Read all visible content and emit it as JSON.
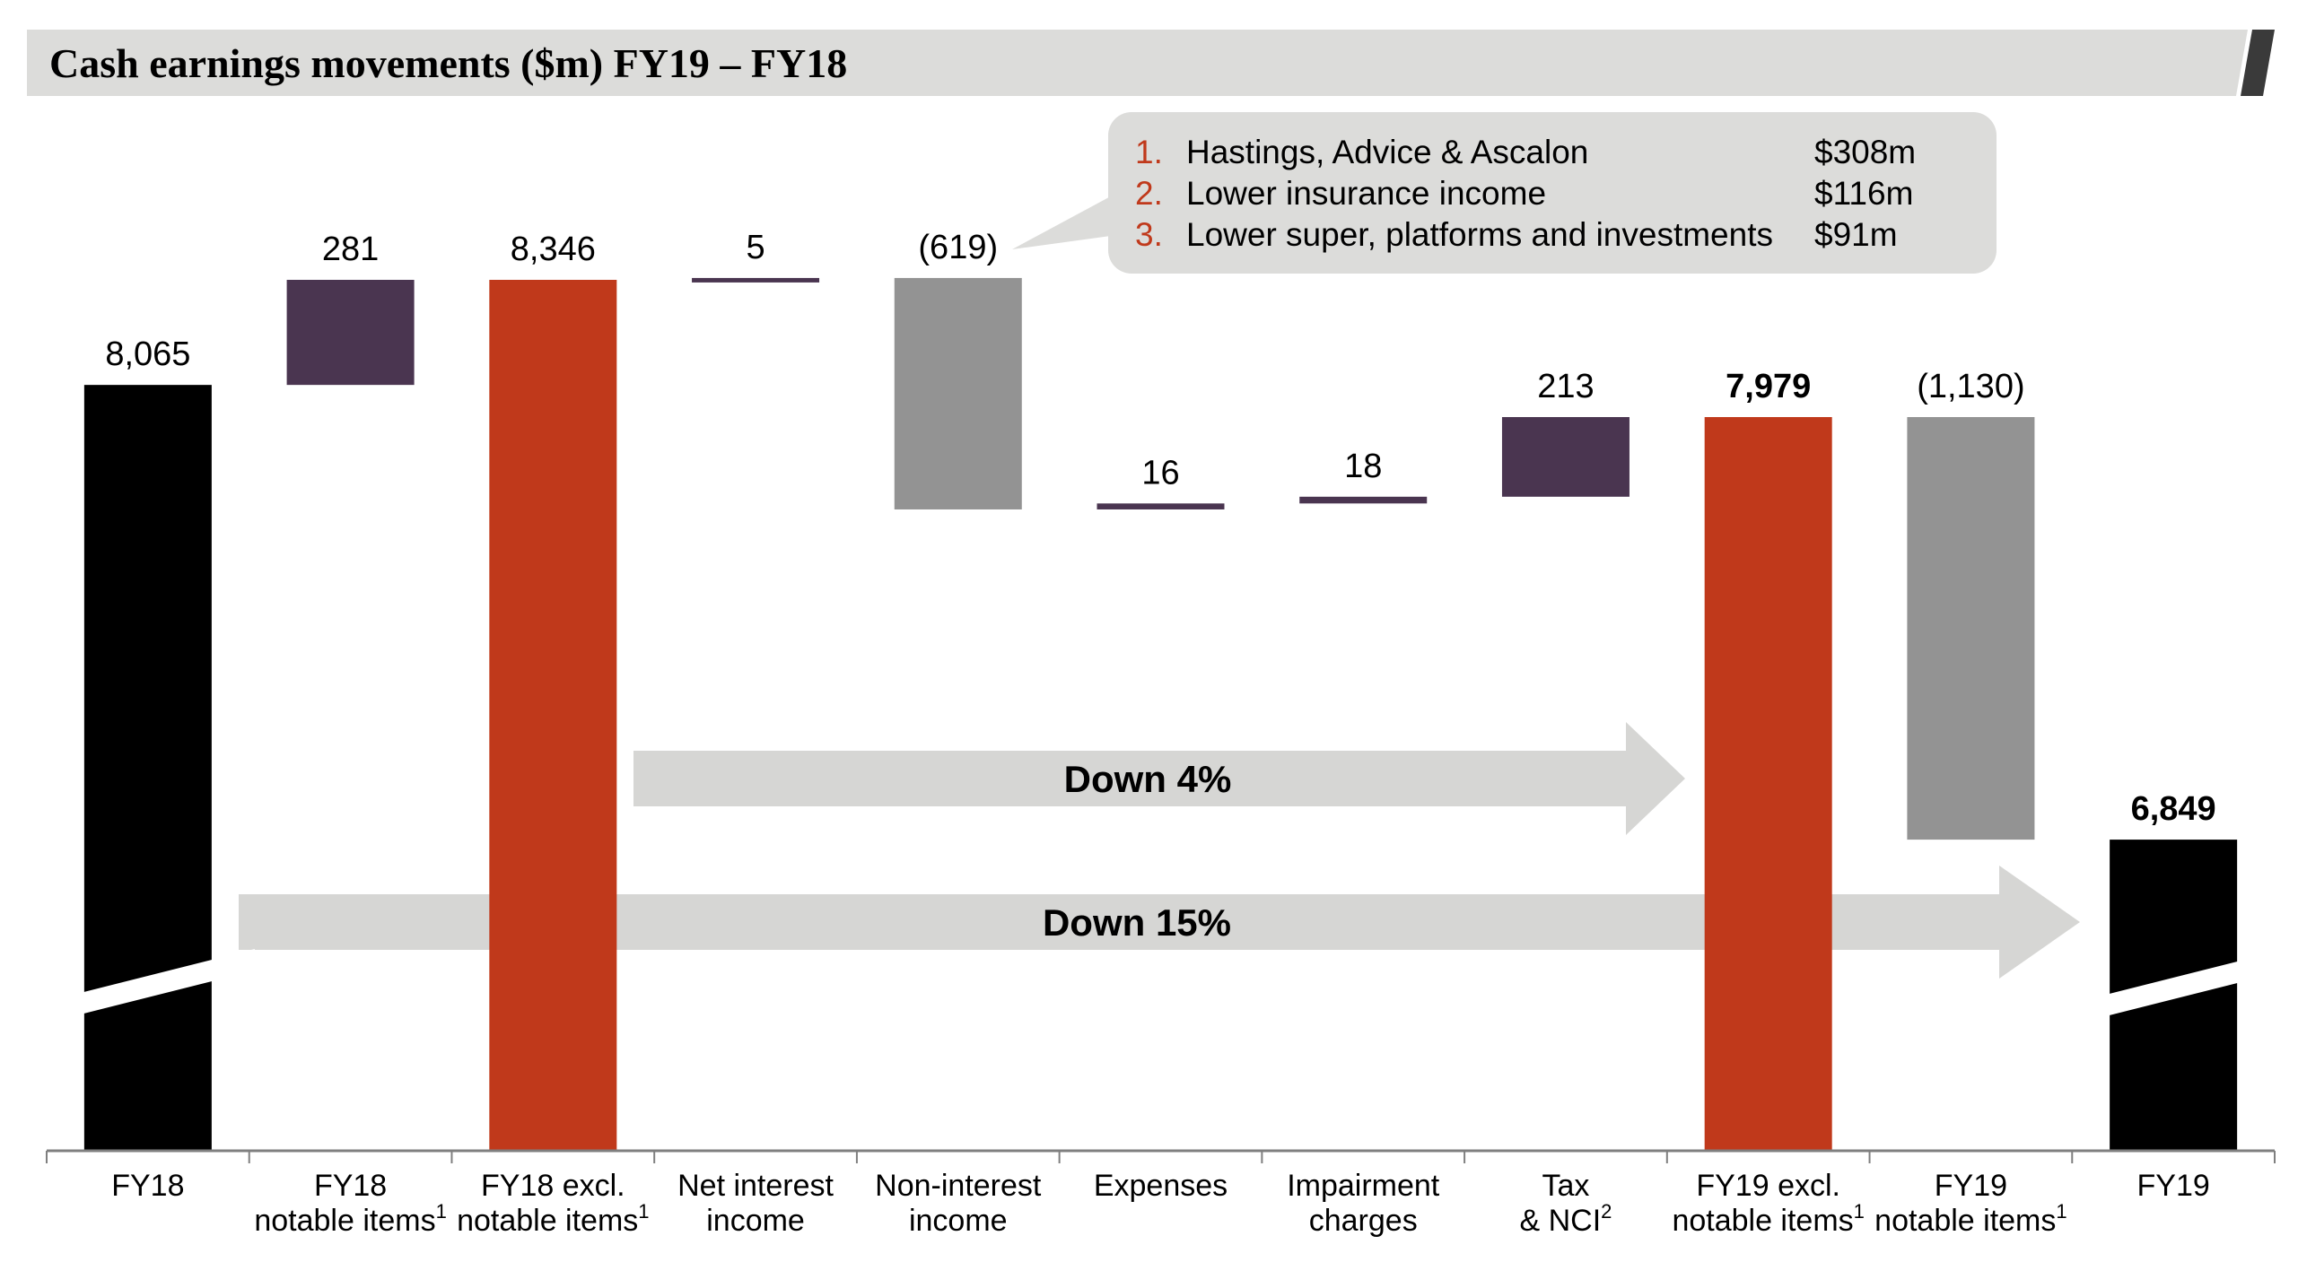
{
  "title": "Cash earnings movements ($m) FY19 – FY18",
  "chart_data": {
    "type": "bar",
    "subtype": "waterfall",
    "title": "Cash earnings movements ($m) FY19 – FY18",
    "categories": [
      {
        "line1": "FY18",
        "line2": "",
        "sup": ""
      },
      {
        "line1": "FY18",
        "line2": "notable  items",
        "sup": "1"
      },
      {
        "line1": "FY18 excl.",
        "line2": "notable items",
        "sup": "1"
      },
      {
        "line1": "Net interest",
        "line2": "income",
        "sup": ""
      },
      {
        "line1": "Non-interest",
        "line2": "income",
        "sup": ""
      },
      {
        "line1": "Expenses",
        "line2": "",
        "sup": ""
      },
      {
        "line1": "Impairment",
        "line2": "charges",
        "sup": ""
      },
      {
        "line1": "Tax",
        "line2": "& NCI",
        "sup": "2"
      },
      {
        "line1": "FY19 excl.",
        "line2": "notable items",
        "sup": "1"
      },
      {
        "line1": "FY19",
        "line2": "notable items",
        "sup": "1"
      },
      {
        "line1": "FY19",
        "line2": "",
        "sup": ""
      }
    ],
    "bars": [
      {
        "kind": "total",
        "value": 8065,
        "label": "8,065",
        "bold": false,
        "color": "#000000",
        "axis_break": true
      },
      {
        "kind": "delta",
        "value": 281,
        "label": "281",
        "bold": false,
        "color": "#4a3550"
      },
      {
        "kind": "total",
        "value": 8346,
        "label": "8,346",
        "bold": false,
        "color": "#c0391b"
      },
      {
        "kind": "delta",
        "value": 5,
        "label": "5",
        "bold": false,
        "color": "#4a3550"
      },
      {
        "kind": "delta",
        "value": -619,
        "label": "(619)",
        "bold": false,
        "color": "#939393"
      },
      {
        "kind": "delta",
        "value": 16,
        "label": "16",
        "bold": false,
        "color": "#4a3550"
      },
      {
        "kind": "delta",
        "value": 18,
        "label": "18",
        "bold": false,
        "color": "#4a3550"
      },
      {
        "kind": "delta",
        "value": 213,
        "label": "213",
        "bold": false,
        "color": "#4a3550"
      },
      {
        "kind": "total",
        "value": 7979,
        "label": "7,979",
        "bold": true,
        "color": "#c0391b"
      },
      {
        "kind": "delta",
        "value": -1130,
        "label": "(1,130)",
        "bold": false,
        "color": "#939393"
      },
      {
        "kind": "total",
        "value": 6849,
        "label": "6,849",
        "bold": true,
        "color": "#000000",
        "axis_break": true
      }
    ],
    "arrows": [
      {
        "label": "Down 4%",
        "from_category": 3,
        "to_category": 8
      },
      {
        "label": "Down 15%",
        "from_category": 1,
        "to_category": 10
      }
    ],
    "axis_break": true,
    "xlabel": "",
    "ylabel": ""
  },
  "callout": {
    "items": [
      {
        "num": "1.",
        "text": "Hastings, Advice & Ascalon",
        "amount": "$308m"
      },
      {
        "num": "2.",
        "text": "Lower insurance income",
        "amount": "$116m"
      },
      {
        "num": "3.",
        "text": "Lower super, platforms and investments",
        "amount": "$91m"
      }
    ]
  },
  "colors": {
    "title_bar": "#dcdcda",
    "accent": "#c0391b",
    "purple": "#4a3550",
    "grey": "#939393",
    "arrow": "#d6d6d4",
    "callout_bg": "#dcdcda"
  }
}
